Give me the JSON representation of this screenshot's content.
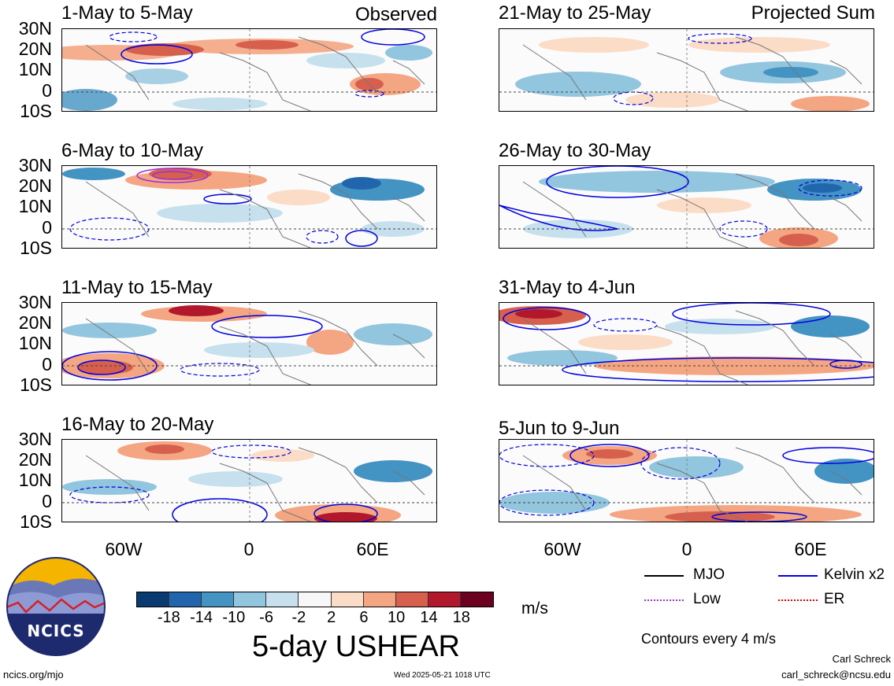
{
  "observed_label": "Observed",
  "projected_label": "Projected Sum",
  "panels_left": [
    {
      "title": "1-May to 5-May"
    },
    {
      "title": "6-May to 10-May"
    },
    {
      "title": "11-May to 15-May"
    },
    {
      "title": "16-May to 20-May"
    }
  ],
  "panels_right": [
    {
      "title": "21-May to 25-May"
    },
    {
      "title": "26-May to 30-May"
    },
    {
      "title": "31-May to 4-Jun"
    },
    {
      "title": "5-Jun to 9-Jun"
    }
  ],
  "lat_labels": [
    "30N",
    "20N",
    "10N",
    "0",
    "10S"
  ],
  "lon_labels": [
    "60W",
    "0",
    "60E"
  ],
  "colorbar": {
    "colors": [
      "#0a3b70",
      "#2166ac",
      "#4393c3",
      "#92c5de",
      "#c6e0ee",
      "#f7f7f7",
      "#fbdcc6",
      "#f4a582",
      "#d6604d",
      "#b2182b",
      "#6b0020"
    ],
    "ticks": [
      "-18",
      "-14",
      "-10",
      "-6",
      "-2",
      "2",
      "6",
      "10",
      "14",
      "18"
    ],
    "units": "m/s"
  },
  "legend": {
    "items": [
      {
        "label": "MJO",
        "color": "#000000"
      },
      {
        "label": "Kelvin x2",
        "color": "#0000e0"
      },
      {
        "label": "Low",
        "color": "#9b30d9"
      },
      {
        "label": "ER",
        "color": "#e00000"
      }
    ],
    "contour_note": "Contours every 4 m/s"
  },
  "main_title": "5-day USHEAR",
  "logo_text": "NCICS",
  "footer": {
    "url": "ncics.org/mjo",
    "timestamp": "Wed 2025-05-21 1018 UTC",
    "author": "Carl Schreck",
    "email": "carl_schreck@ncsu.edu"
  }
}
